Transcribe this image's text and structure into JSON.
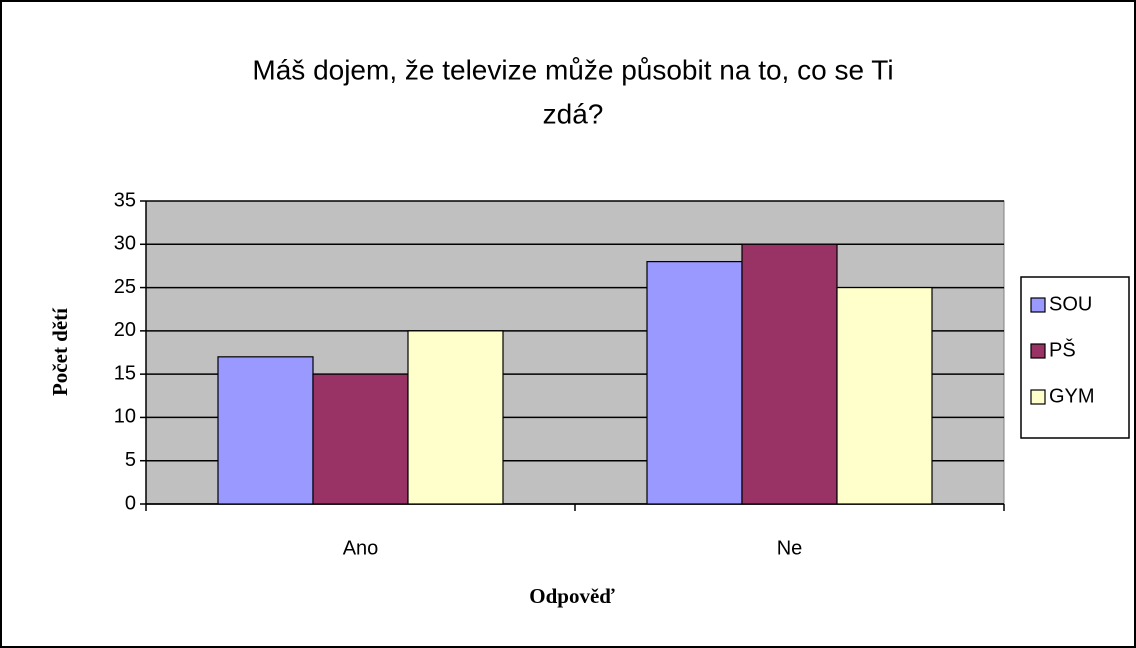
{
  "chart_data": {
    "type": "bar",
    "title": [
      "Máš dojem, že televize může působit na to, co se Ti",
      "zdá?"
    ],
    "x_label": "Odpověď",
    "y_label": "Počet dětí",
    "categories": [
      "Ano",
      "Ne"
    ],
    "series": [
      {
        "name": "SOU",
        "color": "#9999ff",
        "values": [
          17,
          28
        ]
      },
      {
        "name": "PŠ",
        "color": "#993366",
        "values": [
          15,
          30
        ]
      },
      {
        "name": "GYM",
        "color": "#ffffcc",
        "values": [
          20,
          25
        ]
      }
    ],
    "ylim": [
      0,
      35
    ],
    "yticks": [
      0,
      5,
      10,
      15,
      20,
      25,
      30,
      35
    ],
    "grid": true,
    "legend": "right"
  }
}
